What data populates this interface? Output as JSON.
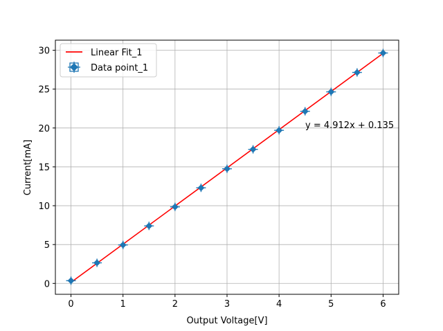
{
  "chart_data": {
    "type": "scatter",
    "title": "",
    "xlabel": "Output Voltage[V]",
    "ylabel": "Current[mA]",
    "xlim": [
      -0.3,
      6.3
    ],
    "ylim": [
      -1.4,
      31.3
    ],
    "xticks": [
      0,
      1,
      2,
      3,
      4,
      5,
      6
    ],
    "yticks": [
      0,
      5,
      10,
      15,
      20,
      25,
      30
    ],
    "grid": true,
    "legend_position": "top-left",
    "annotation": "y = 4.912x + 0.135",
    "series": [
      {
        "name": "Linear Fit_1",
        "kind": "line",
        "color": "#ff0000",
        "slope": 4.912,
        "intercept": 0.135,
        "x_range": [
          0,
          6
        ]
      },
      {
        "name": "Data point_1",
        "kind": "errorbar-scatter",
        "color": "#1f77b4",
        "x": [
          0,
          0.5,
          1,
          1.5,
          2,
          2.5,
          3,
          3.5,
          4,
          4.5,
          5,
          5.5,
          6
        ],
        "y": [
          0.35,
          2.65,
          4.95,
          7.4,
          9.85,
          12.3,
          14.75,
          17.25,
          19.7,
          22.15,
          24.65,
          27.15,
          29.65
        ]
      }
    ]
  }
}
